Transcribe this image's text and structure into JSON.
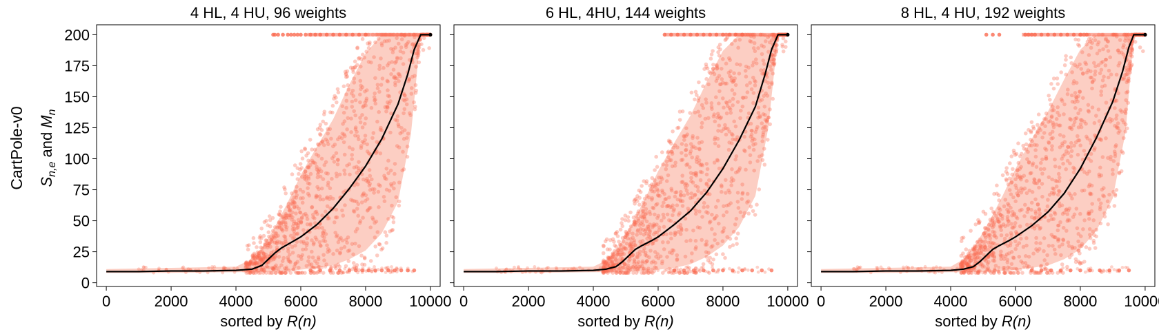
{
  "figure": {
    "row_label": "CartPole-v0",
    "ylabel": "S_{n,e} and M_n",
    "xlabel_prefix": "sorted by ",
    "xlabel_var": "R(n)"
  },
  "colors": {
    "scatter": "#fa6a50",
    "band": "#fcc5b8",
    "mean_line": "#000000"
  },
  "chart_data": [
    {
      "type": "scatter",
      "title": "4 HL, 4 HU, 96 weights",
      "xlim": [
        -300,
        10300
      ],
      "ylim": [
        -3,
        208
      ],
      "xticks": [
        0,
        2000,
        4000,
        6000,
        8000,
        10000
      ],
      "yticks": [
        0,
        25,
        50,
        75,
        100,
        125,
        150,
        175,
        200
      ],
      "mean_curve": {
        "x": [
          0,
          1000,
          2000,
          3000,
          4000,
          4500,
          4800,
          5000,
          5200,
          5400,
          5600,
          5800,
          6000,
          6500,
          7000,
          7500,
          8000,
          8500,
          9000,
          9300,
          9500,
          9700,
          9850,
          10000
        ],
        "y": [
          9,
          9,
          9.5,
          9.5,
          10,
          11,
          14,
          19,
          24,
          28,
          31,
          34,
          37,
          47,
          60,
          76,
          94,
          116,
          144,
          168,
          188,
          200,
          200,
          200
        ]
      },
      "band_lower": {
        "x": [
          0,
          2000,
          4000,
          4600,
          5200,
          5800,
          6500,
          7000,
          7500,
          8000,
          8500,
          9000,
          9400,
          9700,
          10000
        ],
        "y": [
          8,
          8,
          8.5,
          8.5,
          9,
          10,
          12,
          14,
          19,
          26,
          40,
          65,
          120,
          200,
          200
        ]
      },
      "band_upper": {
        "x": [
          0,
          2000,
          4000,
          4400,
          4800,
          5200,
          5600,
          6000,
          6500,
          7000,
          7500,
          8000,
          8500,
          9000,
          10000
        ],
        "y": [
          11,
          12,
          13,
          18,
          28,
          45,
          65,
          87,
          110,
          132,
          160,
          185,
          200,
          200,
          200
        ]
      },
      "cap_points_x": [
        5150,
        5200,
        5300,
        5450,
        5600,
        5700,
        5800,
        5900,
        6000,
        6150,
        6300,
        6450,
        6600,
        6800,
        7000,
        7200,
        7400,
        7600,
        7800,
        8000
      ],
      "low_points_x": [
        6300,
        6600,
        6900,
        7200,
        7500,
        7700,
        7900,
        8100,
        8300,
        8500,
        8700,
        8900,
        9100,
        9300,
        9500
      ]
    },
    {
      "type": "scatter",
      "title": "6 HL, 4HU, 144 weights",
      "xlim": [
        -300,
        10300
      ],
      "ylim": [
        -3,
        208
      ],
      "xticks": [
        0,
        2000,
        4000,
        6000,
        8000,
        10000
      ],
      "yticks": [
        0,
        25,
        50,
        75,
        100,
        125,
        150,
        175,
        200
      ],
      "mean_curve": {
        "x": [
          0,
          1000,
          2000,
          3000,
          4000,
          4400,
          4700,
          4900,
          5100,
          5300,
          5500,
          5800,
          6000,
          6500,
          7000,
          7500,
          8000,
          8500,
          9000,
          9300,
          9500,
          9700,
          9850,
          10000
        ],
        "y": [
          9,
          9,
          9.5,
          9.5,
          10,
          11,
          13,
          17,
          22,
          27,
          30,
          34,
          37,
          47,
          58,
          73,
          92,
          115,
          142,
          168,
          188,
          200,
          200,
          200
        ]
      },
      "band_lower": {
        "x": [
          0,
          2000,
          4000,
          4600,
          5200,
          5800,
          6500,
          7000,
          7500,
          8000,
          8500,
          9000,
          9400,
          9700,
          10000
        ],
        "y": [
          8,
          8,
          8.5,
          8.5,
          9,
          10,
          12,
          15,
          21,
          30,
          45,
          70,
          125,
          200,
          200
        ]
      },
      "band_upper": {
        "x": [
          0,
          2000,
          4000,
          4400,
          4800,
          5200,
          5600,
          6000,
          6500,
          7000,
          7500,
          8000,
          8500,
          9000,
          10000
        ],
        "y": [
          11,
          12,
          13,
          18,
          30,
          48,
          68,
          90,
          113,
          135,
          162,
          187,
          200,
          200,
          200
        ]
      },
      "cap_points_x": [
        6200,
        6400,
        6600,
        6800,
        7000,
        7200,
        7400,
        7600,
        7800,
        8000,
        8200,
        8400,
        8600
      ],
      "low_points_x": [
        6500,
        6800,
        7100,
        7400,
        7700,
        8000,
        8300,
        8600,
        8900,
        9200,
        9500
      ]
    },
    {
      "type": "scatter",
      "title": "8 HL, 4 HU, 192 weights",
      "xlim": [
        -300,
        10300
      ],
      "ylim": [
        -3,
        208
      ],
      "xticks": [
        0,
        2000,
        4000,
        6000,
        8000,
        10000
      ],
      "yticks": [
        0,
        25,
        50,
        75,
        100,
        125,
        150,
        175,
        200
      ],
      "mean_curve": {
        "x": [
          0,
          1000,
          2000,
          3000,
          4000,
          4400,
          4700,
          4900,
          5100,
          5300,
          5500,
          5800,
          6000,
          6500,
          7000,
          7500,
          8000,
          8500,
          9000,
          9300,
          9500,
          9650,
          9850,
          10000
        ],
        "y": [
          9,
          9,
          9.5,
          9.5,
          10,
          11,
          13,
          17,
          22,
          27,
          30,
          34,
          37,
          46,
          57,
          72,
          92,
          117,
          146,
          170,
          190,
          200,
          200,
          200
        ]
      },
      "band_lower": {
        "x": [
          0,
          2000,
          4000,
          4600,
          5200,
          5800,
          6500,
          7000,
          7500,
          8000,
          8500,
          9000,
          9400,
          9650,
          10000
        ],
        "y": [
          8,
          8,
          8.5,
          8.5,
          9,
          10,
          12,
          14,
          19,
          27,
          42,
          68,
          122,
          200,
          200
        ]
      },
      "band_upper": {
        "x": [
          0,
          2000,
          4000,
          4400,
          4800,
          5200,
          5600,
          6000,
          6500,
          7000,
          7500,
          8000,
          8500,
          9000,
          10000
        ],
        "y": [
          11,
          12,
          13,
          19,
          32,
          50,
          70,
          92,
          116,
          138,
          164,
          188,
          200,
          200,
          200
        ]
      },
      "cap_points_x": [
        5100,
        5300,
        5500,
        6300,
        6400,
        6500,
        6600,
        6800,
        7000,
        7200,
        7400,
        7600,
        7800,
        8000,
        8200
      ],
      "low_points_x": [
        6500,
        6800,
        7100,
        7400,
        7700,
        8000,
        8300,
        8600,
        8900,
        9200,
        9500
      ]
    }
  ]
}
